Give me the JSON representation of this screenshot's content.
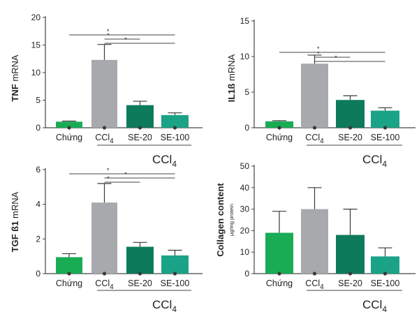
{
  "colors": {
    "chung": "#1aab55",
    "ccl4": "#a7a9ac",
    "se20": "#0e7a5c",
    "se100": "#1aa386",
    "axis": "#444444",
    "marker": "#3a3a3a"
  },
  "chart_data": [
    {
      "type": "bar",
      "title": "",
      "ylabel_bold": "TNF",
      "ylabel_rest": " mRNA",
      "ylabel_unit": "",
      "categories": [
        "Chứng",
        "CCl4",
        "SE-20",
        "SE-100"
      ],
      "category_subscripts": [
        "",
        "4",
        "",
        ""
      ],
      "group_label": "CCl",
      "group_label_sub": "4",
      "values": [
        1.1,
        12.3,
        4.1,
        2.3
      ],
      "errors": [
        0.1,
        2.8,
        0.7,
        0.4
      ],
      "ylim": [
        0,
        20
      ],
      "yticks": [
        0,
        5,
        10,
        15,
        20
      ],
      "significance": [
        {
          "from": 1,
          "to": 2,
          "label": "*"
        },
        {
          "from": 1,
          "to": 3,
          "label": "*"
        },
        {
          "from": 0,
          "to": 3,
          "label": "*"
        }
      ]
    },
    {
      "type": "bar",
      "title": "",
      "ylabel_bold": "IL1ß",
      "ylabel_rest": " mRNA",
      "ylabel_unit": "",
      "categories": [
        "Chứng",
        "CCl4",
        "SE-20",
        "SE-100"
      ],
      "category_subscripts": [
        "",
        "4",
        "",
        ""
      ],
      "group_label": "CCl",
      "group_label_sub": "4",
      "values": [
        0.9,
        9.0,
        3.9,
        2.4
      ],
      "errors": [
        0.1,
        1.2,
        0.6,
        0.4
      ],
      "ylim": [
        0,
        15
      ],
      "yticks": [
        0,
        5,
        10,
        15
      ],
      "significance": [
        {
          "from": 1,
          "to": 2,
          "label": "*"
        },
        {
          "from": 1,
          "to": 3,
          "label": "*"
        },
        {
          "from": 0,
          "to": 3,
          "label": "*"
        }
      ]
    },
    {
      "type": "bar",
      "title": "",
      "ylabel_bold": "TGF ß1",
      "ylabel_rest": " mRNA",
      "ylabel_unit": "",
      "categories": [
        "Chứng",
        "CCl4",
        "SE-20",
        "SE-100"
      ],
      "category_subscripts": [
        "",
        "4",
        "",
        ""
      ],
      "group_label": "CCl",
      "group_label_sub": "4",
      "values": [
        0.95,
        4.1,
        1.55,
        1.05
      ],
      "errors": [
        0.2,
        1.1,
        0.25,
        0.3
      ],
      "ylim": [
        0,
        6
      ],
      "yticks": [
        0,
        2,
        4,
        6
      ],
      "significance": [
        {
          "from": 1,
          "to": 2,
          "label": "*"
        },
        {
          "from": 1,
          "to": 3,
          "label": "*"
        },
        {
          "from": 0,
          "to": 3,
          "label": "*"
        }
      ]
    },
    {
      "type": "bar",
      "title": "",
      "ylabel_bold": "Collagen content",
      "ylabel_rest": "",
      "ylabel_unit": "µg/mg protein",
      "categories": [
        "Chứng",
        "CCl4",
        "SE-20",
        "SE-100"
      ],
      "category_subscripts": [
        "",
        "4",
        "",
        ""
      ],
      "group_label": "CCl",
      "group_label_sub": "4",
      "values": [
        19,
        30,
        18,
        8
      ],
      "errors": [
        10,
        10,
        12,
        4
      ],
      "ylim": [
        0,
        50
      ],
      "yticks": [
        0,
        10,
        20,
        30,
        40,
        50
      ],
      "significance": []
    }
  ]
}
